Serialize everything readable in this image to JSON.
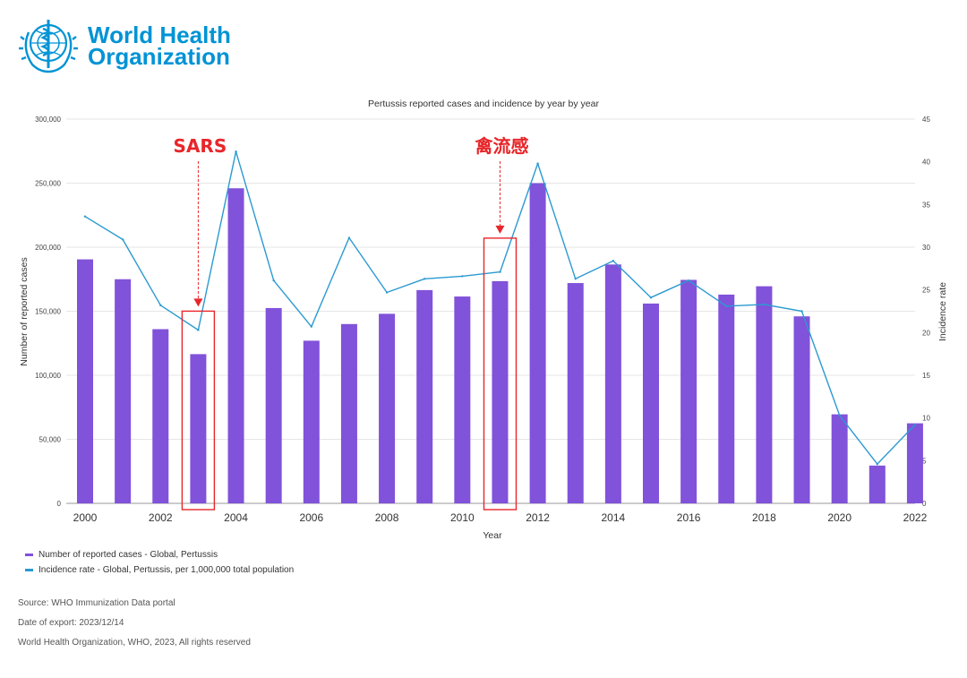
{
  "brand": {
    "line1": "World Health",
    "line2": "Organization",
    "color": "#0093d5"
  },
  "chart_data": {
    "type": "bar",
    "title": "Pertussis reported cases and incidence by year by year",
    "xlabel": "Year",
    "ylabel": "Number of reported cases",
    "y2label": "Incidence rate",
    "ylim": [
      0,
      300000
    ],
    "y2lim": [
      0,
      45
    ],
    "yticks": [
      "0",
      "50,000",
      "100,000",
      "150,000",
      "200,000",
      "250,000",
      "300,000"
    ],
    "y2ticks": [
      "0",
      "5",
      "10",
      "15",
      "20",
      "25",
      "30",
      "35",
      "40",
      "45"
    ],
    "xticks": [
      "2000",
      "2002",
      "2004",
      "2006",
      "2008",
      "2010",
      "2012",
      "2014",
      "2016",
      "2018",
      "2020",
      "2022"
    ],
    "grid": true,
    "categories": [
      2000,
      2001,
      2002,
      2003,
      2004,
      2005,
      2006,
      2007,
      2008,
      2009,
      2010,
      2011,
      2012,
      2013,
      2014,
      2015,
      2016,
      2017,
      2018,
      2019,
      2020,
      2021,
      2022
    ],
    "series": [
      {
        "name": "Number of reported cases - Global, Pertussis",
        "type": "bar",
        "axis": "left",
        "color": "#8152da",
        "values": [
          190500,
          175000,
          136000,
          116500,
          246000,
          152500,
          127000,
          140000,
          148000,
          166500,
          161500,
          173500,
          250000,
          172000,
          186500,
          156000,
          174500,
          163000,
          169500,
          146000,
          69500,
          29500,
          62500
        ]
      },
      {
        "name": "Incidence rate - Global, Pertussis, per 1,000,000 total population",
        "type": "line",
        "axis": "right",
        "color": "#2b9ad1",
        "values": [
          33.6,
          30.9,
          23.2,
          20.3,
          41.2,
          26.1,
          20.7,
          31.1,
          24.7,
          26.3,
          26.6,
          27.1,
          39.8,
          26.3,
          28.4,
          24.1,
          26.1,
          23.1,
          23.3,
          22.5,
          10.3,
          4.6,
          9.2
        ]
      }
    ],
    "annotations": [
      {
        "text": "SARS",
        "year": 2003,
        "color": "#e8262a"
      },
      {
        "text": "禽流感",
        "year": 2011,
        "color": "#e8262a"
      }
    ],
    "legend_position": "bottom-left"
  },
  "footer": {
    "source": "Source: WHO Immunization Data portal",
    "date": "Date of export: 2023/12/14",
    "rights": "World Health Organization, WHO, 2023, All rights reserved"
  }
}
